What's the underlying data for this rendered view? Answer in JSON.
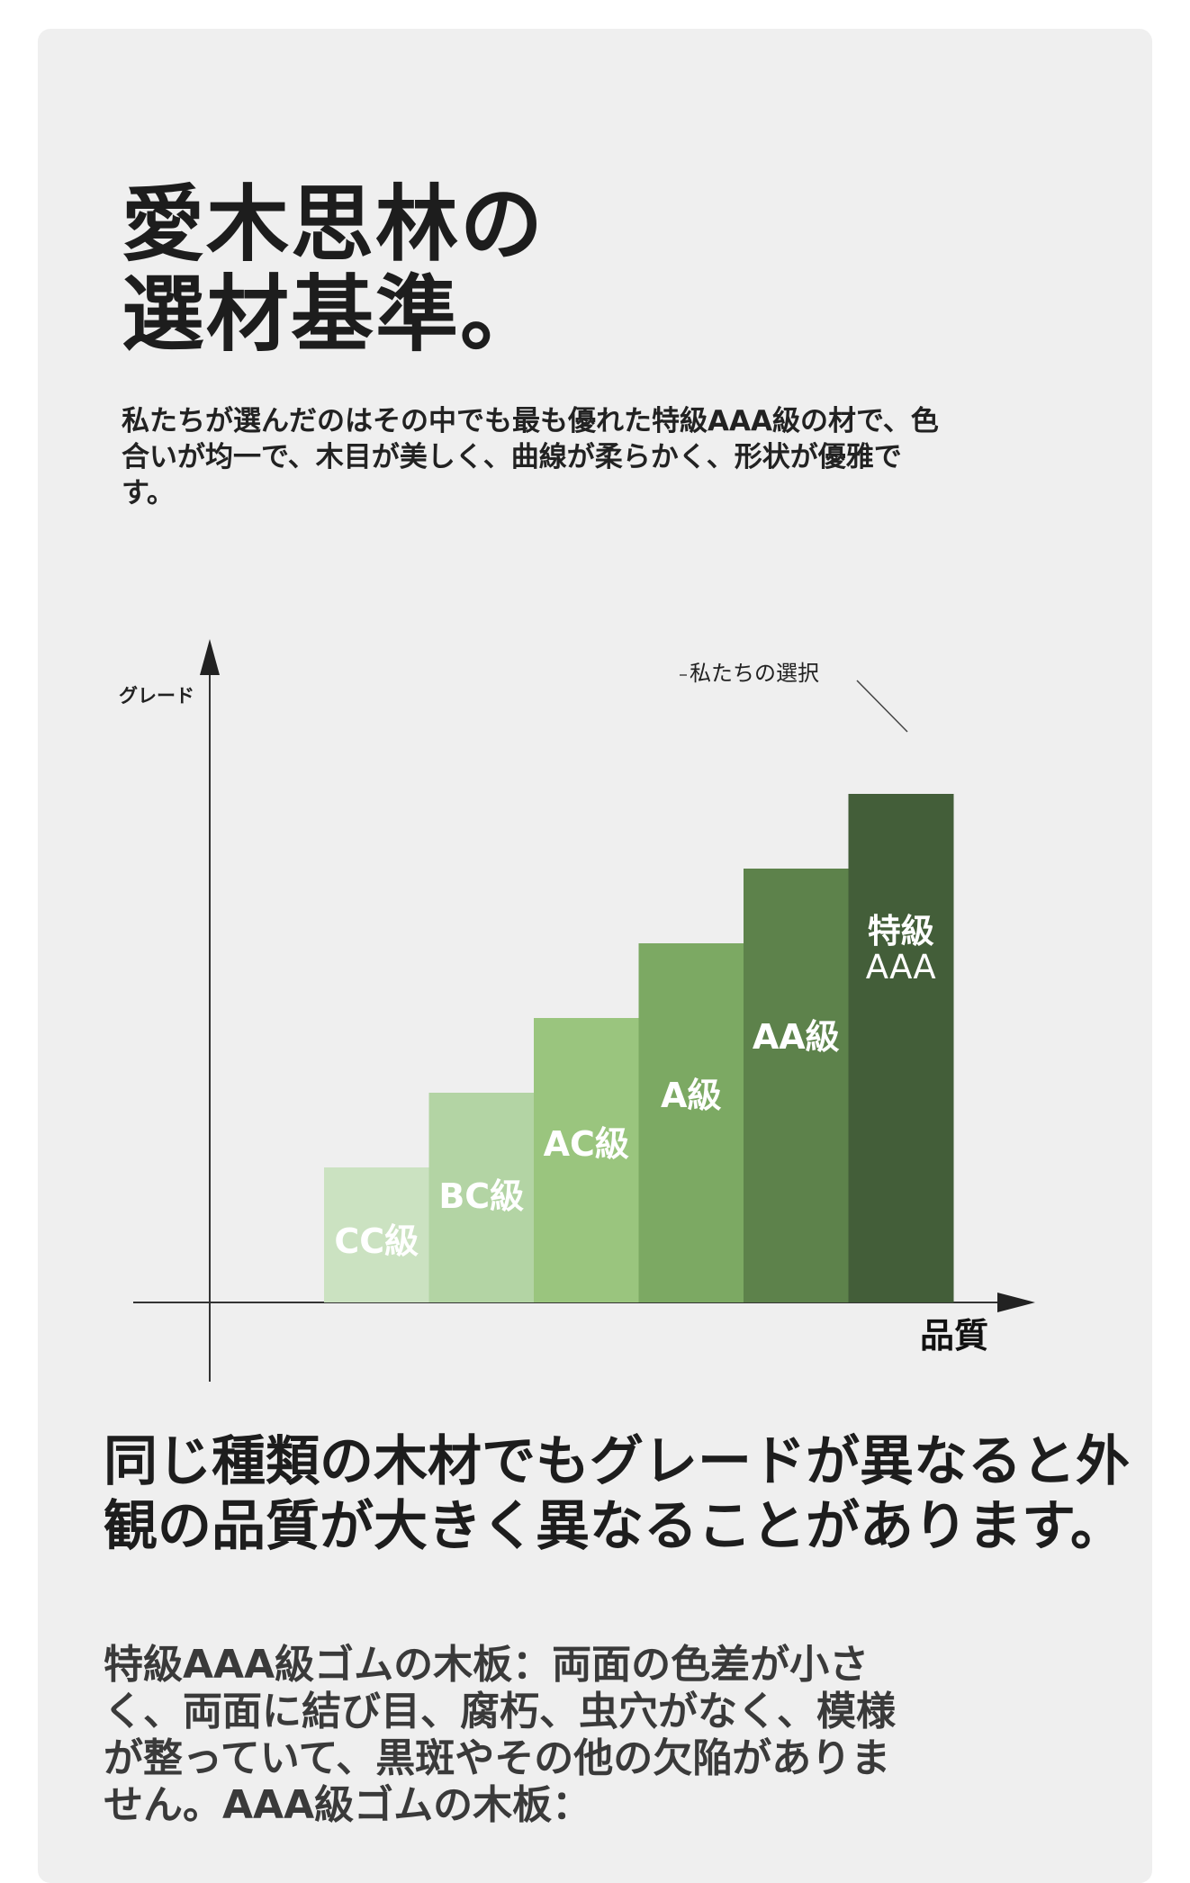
{
  "page": {
    "title_line1": "愛木思林の",
    "title_line2": "選材基準。",
    "intro": "私たちが選んだのはその中でも最も優れた特級AAA級の材で、色合いが均一で、木目が美しく、曲線が柔らかく、形状が優雅です。",
    "heading": "同じ種類の木材でもグレードが異なると外観の品質が大きく異なることがあります。",
    "body": "特級AAA級ゴムの木板：両面の色差が小さく、両面に結び目、腐朽、虫穴がなく、模様が整っていて、黒斑やその他の欠陥がありません。AAA級ゴムの木板："
  },
  "chart_data": {
    "type": "bar",
    "ylabel": "グレード",
    "xlabel": "品質",
    "annotation": "私たちの選択",
    "categories": [
      "CC級",
      "BC級",
      "AC級",
      "A級",
      "AA級",
      "特級AAA"
    ],
    "values": [
      1,
      2,
      3,
      4,
      5,
      6
    ],
    "colors": [
      "#cbe2c1",
      "#b3d4a4",
      "#9ac57e",
      "#7ca963",
      "#5d824b",
      "#435e39"
    ],
    "label_color": "#ffffff",
    "axis_color": "#333333"
  }
}
